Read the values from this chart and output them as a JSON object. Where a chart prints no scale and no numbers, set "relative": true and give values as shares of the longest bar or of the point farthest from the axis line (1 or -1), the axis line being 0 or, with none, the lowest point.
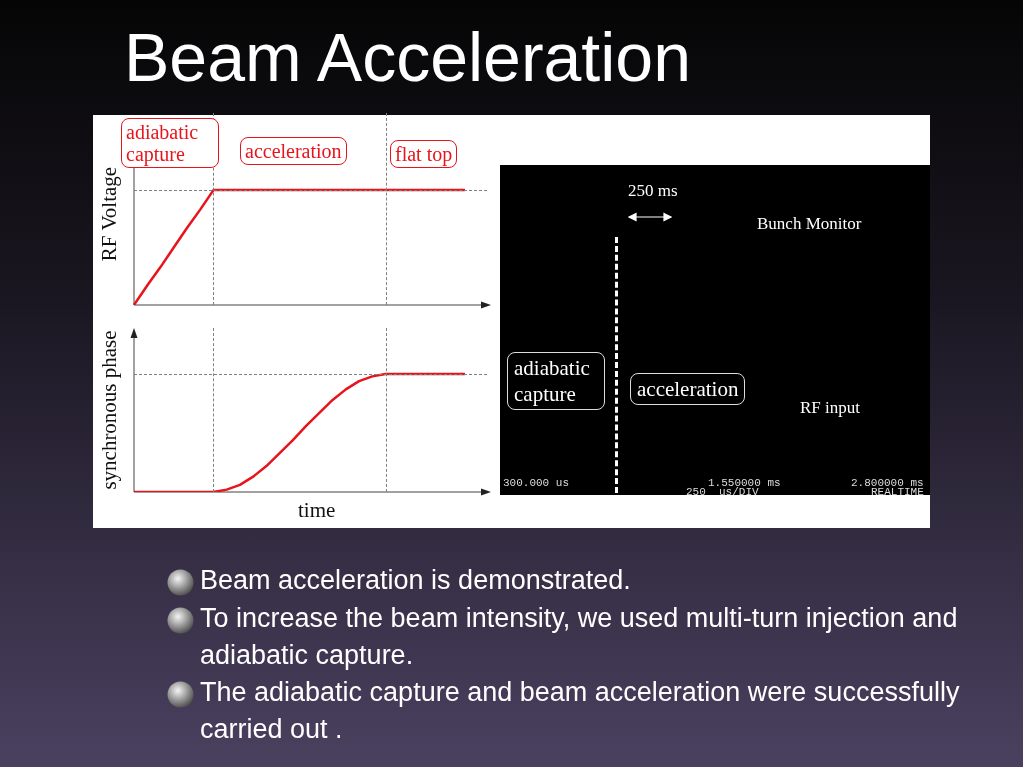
{
  "chart_data": [
    {
      "type": "line",
      "ylabel": "RF Voltage",
      "relative": true,
      "categories": [
        null,
        null,
        null,
        null,
        null,
        null,
        null,
        null,
        null,
        null,
        null,
        null,
        null,
        null,
        null,
        null,
        null,
        null,
        null,
        null,
        null,
        null,
        null,
        null,
        null,
        null
      ],
      "series": [
        {
          "color": "#e8141c",
          "values": [
            0,
            0.17,
            0.33,
            0.5,
            0.67,
            0.83,
            1,
            1,
            1,
            1,
            1,
            1,
            1,
            1,
            1,
            1,
            1,
            1,
            1,
            1,
            1,
            1,
            1,
            1,
            1,
            1
          ]
        }
      ],
      "annotations": [
        "adiabatic capture",
        "acceleration",
        "flat top"
      ],
      "legend": false,
      "tick_labels": false,
      "marker": "none",
      "line_style": "solid"
    },
    {
      "type": "line",
      "ylabel": "synchronous phase",
      "xlabel": "time",
      "relative": true,
      "categories": [
        null,
        null,
        null,
        null,
        null,
        null,
        null,
        null,
        null,
        null,
        null,
        null,
        null,
        null,
        null,
        null,
        null,
        null,
        null,
        null,
        null,
        null,
        null,
        null,
        null,
        null
      ],
      "series": [
        {
          "color": "#e8141c",
          "values": [
            0,
            0,
            0,
            0,
            0,
            0,
            0,
            0.02,
            0.06,
            0.13,
            0.22,
            0.33,
            0.44,
            0.56,
            0.67,
            0.78,
            0.87,
            0.94,
            0.98,
            1,
            1,
            1,
            1,
            1,
            1,
            1
          ]
        }
      ],
      "legend": false,
      "tick_labels": false,
      "marker": "none",
      "line_style": "solid"
    },
    {
      "type": "other",
      "annotations": [
        "250 ms",
        "Bunch Monitor",
        "adiabatic capture",
        "acceleration",
        "RF input",
        "300.000 us",
        "1.550000 ms",
        "250  us/DIV",
        "2.800000 ms",
        "REALTIME"
      ]
    },
    {
      "type": "other",
      "title": "Beam Acceleration",
      "annotations": [
        "Beam acceleration is demonstrated.",
        "To increase the beam intensity, we used multi-turn injection and adiabatic  capture.",
        "The adiabatic capture and beam acceleration were successfully carried out ."
      ]
    }
  ]
}
